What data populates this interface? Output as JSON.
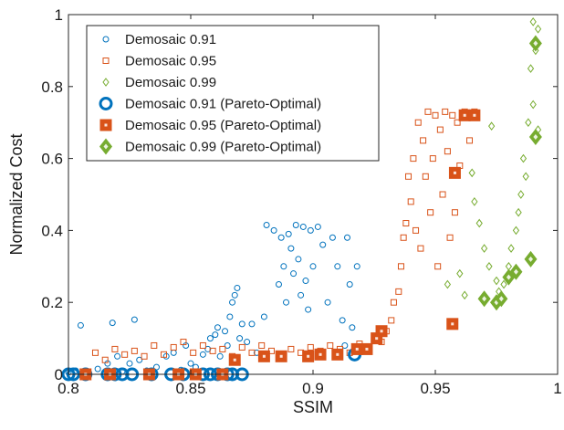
{
  "chart_data": {
    "type": "scatter",
    "xlabel": "SSIM",
    "ylabel": "Normalized Cost",
    "xlim": [
      0.8,
      1.0
    ],
    "ylim": [
      0,
      1.0
    ],
    "x_ticks": [
      "0.8",
      "0.85",
      "0.9",
      "0.95",
      "1"
    ],
    "y_ticks": [
      "0",
      "0.2",
      "0.4",
      "0.6",
      "0.8",
      "1"
    ],
    "grid": false,
    "legend_position": "top-left",
    "series": [
      {
        "name": "Demosaic 0.91",
        "marker": "circle-open",
        "color": "#0072BD",
        "points": [
          [
            0.8,
            0.005
          ],
          [
            0.803,
            0.01
          ],
          [
            0.805,
            0.136
          ],
          [
            0.807,
            0.003
          ],
          [
            0.812,
            0.015
          ],
          [
            0.816,
            0.03
          ],
          [
            0.818,
            0.143
          ],
          [
            0.82,
            0.05
          ],
          [
            0.822,
            0.008
          ],
          [
            0.825,
            0.03
          ],
          [
            0.827,
            0.152
          ],
          [
            0.829,
            0.04
          ],
          [
            0.832,
            0.01
          ],
          [
            0.836,
            0.02
          ],
          [
            0.84,
            0.05
          ],
          [
            0.843,
            0.06
          ],
          [
            0.846,
            0.012
          ],
          [
            0.848,
            0.08
          ],
          [
            0.85,
            0.03
          ],
          [
            0.852,
            0.02
          ],
          [
            0.855,
            0.055
          ],
          [
            0.857,
            0.07
          ],
          [
            0.858,
            0.1
          ],
          [
            0.86,
            0.11
          ],
          [
            0.861,
            0.13
          ],
          [
            0.862,
            0.05
          ],
          [
            0.864,
            0.12
          ],
          [
            0.865,
            0.08
          ],
          [
            0.866,
            0.16
          ],
          [
            0.867,
            0.2
          ],
          [
            0.868,
            0.22
          ],
          [
            0.869,
            0.24
          ],
          [
            0.87,
            0.1
          ],
          [
            0.871,
            0.14
          ],
          [
            0.873,
            0.09
          ],
          [
            0.875,
            0.14
          ],
          [
            0.877,
            0.06
          ],
          [
            0.88,
            0.16
          ],
          [
            0.881,
            0.415
          ],
          [
            0.884,
            0.4
          ],
          [
            0.886,
            0.25
          ],
          [
            0.887,
            0.38
          ],
          [
            0.888,
            0.3
          ],
          [
            0.889,
            0.2
          ],
          [
            0.89,
            0.39
          ],
          [
            0.891,
            0.35
          ],
          [
            0.892,
            0.28
          ],
          [
            0.893,
            0.415
          ],
          [
            0.894,
            0.32
          ],
          [
            0.895,
            0.22
          ],
          [
            0.896,
            0.41
          ],
          [
            0.897,
            0.26
          ],
          [
            0.898,
            0.18
          ],
          [
            0.899,
            0.4
          ],
          [
            0.9,
            0.3
          ],
          [
            0.902,
            0.41
          ],
          [
            0.904,
            0.36
          ],
          [
            0.906,
            0.2
          ],
          [
            0.908,
            0.38
          ],
          [
            0.91,
            0.3
          ],
          [
            0.912,
            0.15
          ],
          [
            0.913,
            0.08
          ],
          [
            0.914,
            0.38
          ],
          [
            0.915,
            0.25
          ],
          [
            0.916,
            0.13
          ],
          [
            0.917,
            0.07
          ],
          [
            0.918,
            0.3
          ]
        ]
      },
      {
        "name": "Demosaic 0.95",
        "marker": "square-open",
        "color": "#D95319",
        "points": [
          [
            0.811,
            0.06
          ],
          [
            0.815,
            0.04
          ],
          [
            0.819,
            0.07
          ],
          [
            0.823,
            0.055
          ],
          [
            0.827,
            0.065
          ],
          [
            0.831,
            0.05
          ],
          [
            0.835,
            0.08
          ],
          [
            0.839,
            0.055
          ],
          [
            0.843,
            0.075
          ],
          [
            0.847,
            0.09
          ],
          [
            0.851,
            0.06
          ],
          [
            0.855,
            0.08
          ],
          [
            0.859,
            0.065
          ],
          [
            0.863,
            0.07
          ],
          [
            0.867,
            0.05
          ],
          [
            0.871,
            0.075
          ],
          [
            0.875,
            0.06
          ],
          [
            0.879,
            0.08
          ],
          [
            0.883,
            0.065
          ],
          [
            0.887,
            0.055
          ],
          [
            0.891,
            0.07
          ],
          [
            0.895,
            0.06
          ],
          [
            0.899,
            0.075
          ],
          [
            0.903,
            0.065
          ],
          [
            0.907,
            0.08
          ],
          [
            0.911,
            0.07
          ],
          [
            0.915,
            0.06
          ],
          [
            0.919,
            0.085
          ],
          [
            0.923,
            0.07
          ],
          [
            0.926,
            0.1
          ],
          [
            0.928,
            0.09
          ],
          [
            0.93,
            0.12
          ],
          [
            0.932,
            0.15
          ],
          [
            0.933,
            0.2
          ],
          [
            0.935,
            0.23
          ],
          [
            0.936,
            0.3
          ],
          [
            0.937,
            0.38
          ],
          [
            0.938,
            0.42
          ],
          [
            0.939,
            0.55
          ],
          [
            0.94,
            0.48
          ],
          [
            0.941,
            0.6
          ],
          [
            0.942,
            0.4
          ],
          [
            0.943,
            0.7
          ],
          [
            0.944,
            0.35
          ],
          [
            0.945,
            0.65
          ],
          [
            0.946,
            0.55
          ],
          [
            0.947,
            0.73
          ],
          [
            0.948,
            0.45
          ],
          [
            0.949,
            0.6
          ],
          [
            0.95,
            0.72
          ],
          [
            0.951,
            0.3
          ],
          [
            0.952,
            0.68
          ],
          [
            0.953,
            0.5
          ],
          [
            0.954,
            0.73
          ],
          [
            0.955,
            0.62
          ],
          [
            0.956,
            0.38
          ],
          [
            0.957,
            0.72
          ],
          [
            0.958,
            0.45
          ],
          [
            0.959,
            0.7
          ],
          [
            0.96,
            0.58
          ],
          [
            0.962,
            0.73
          ],
          [
            0.964,
            0.65
          ],
          [
            0.966,
            0.73
          ]
        ]
      },
      {
        "name": "Demosaic 0.99",
        "marker": "diamond-open",
        "color": "#77AC30",
        "points": [
          [
            0.955,
            0.25
          ],
          [
            0.96,
            0.28
          ],
          [
            0.962,
            0.22
          ],
          [
            0.965,
            0.56
          ],
          [
            0.966,
            0.48
          ],
          [
            0.968,
            0.42
          ],
          [
            0.97,
            0.35
          ],
          [
            0.972,
            0.3
          ],
          [
            0.973,
            0.69
          ],
          [
            0.975,
            0.26
          ],
          [
            0.976,
            0.23
          ],
          [
            0.978,
            0.25
          ],
          [
            0.98,
            0.3
          ],
          [
            0.981,
            0.35
          ],
          [
            0.982,
            0.28
          ],
          [
            0.983,
            0.4
          ],
          [
            0.984,
            0.45
          ],
          [
            0.985,
            0.5
          ],
          [
            0.986,
            0.6
          ],
          [
            0.987,
            0.55
          ],
          [
            0.988,
            0.7
          ],
          [
            0.989,
            0.85
          ],
          [
            0.99,
            0.98
          ],
          [
            0.99,
            0.75
          ],
          [
            0.991,
            0.9
          ],
          [
            0.992,
            0.68
          ],
          [
            0.992,
            0.96
          ]
        ]
      },
      {
        "name": "Demosaic 0.91 (Pareto-Optimal)",
        "marker": "circle-bold",
        "color": "#0072BD",
        "points": [
          [
            0.8,
            0.0
          ],
          [
            0.802,
            0.0
          ],
          [
            0.807,
            0.0
          ],
          [
            0.816,
            0.0
          ],
          [
            0.819,
            0.0
          ],
          [
            0.822,
            0.0
          ],
          [
            0.826,
            0.0
          ],
          [
            0.834,
            0.0
          ],
          [
            0.842,
            0.0
          ],
          [
            0.847,
            0.0
          ],
          [
            0.855,
            0.0
          ],
          [
            0.858,
            0.0
          ],
          [
            0.861,
            0.0
          ],
          [
            0.865,
            0.0
          ],
          [
            0.867,
            0.0
          ],
          [
            0.871,
            0.0
          ],
          [
            0.917,
            0.055
          ]
        ]
      },
      {
        "name": "Demosaic 0.95 (Pareto-Optimal)",
        "marker": "square-filled",
        "color": "#D95319",
        "points": [
          [
            0.807,
            0.0
          ],
          [
            0.817,
            0.0
          ],
          [
            0.833,
            0.0
          ],
          [
            0.845,
            0.0
          ],
          [
            0.852,
            0.0
          ],
          [
            0.863,
            0.0
          ],
          [
            0.868,
            0.04
          ],
          [
            0.88,
            0.05
          ],
          [
            0.887,
            0.05
          ],
          [
            0.898,
            0.05
          ],
          [
            0.903,
            0.055
          ],
          [
            0.91,
            0.055
          ],
          [
            0.918,
            0.07
          ],
          [
            0.922,
            0.07
          ],
          [
            0.926,
            0.1
          ],
          [
            0.928,
            0.12
          ],
          [
            0.957,
            0.14
          ],
          [
            0.958,
            0.56
          ],
          [
            0.962,
            0.72
          ],
          [
            0.966,
            0.72
          ]
        ]
      },
      {
        "name": "Demosaic 0.99 (Pareto-Optimal)",
        "marker": "diamond-filled",
        "color": "#77AC30",
        "points": [
          [
            0.97,
            0.21
          ],
          [
            0.975,
            0.2
          ],
          [
            0.977,
            0.21
          ],
          [
            0.98,
            0.27
          ],
          [
            0.983,
            0.285
          ],
          [
            0.989,
            0.32
          ],
          [
            0.991,
            0.66
          ],
          [
            0.991,
            0.92
          ]
        ]
      }
    ]
  }
}
